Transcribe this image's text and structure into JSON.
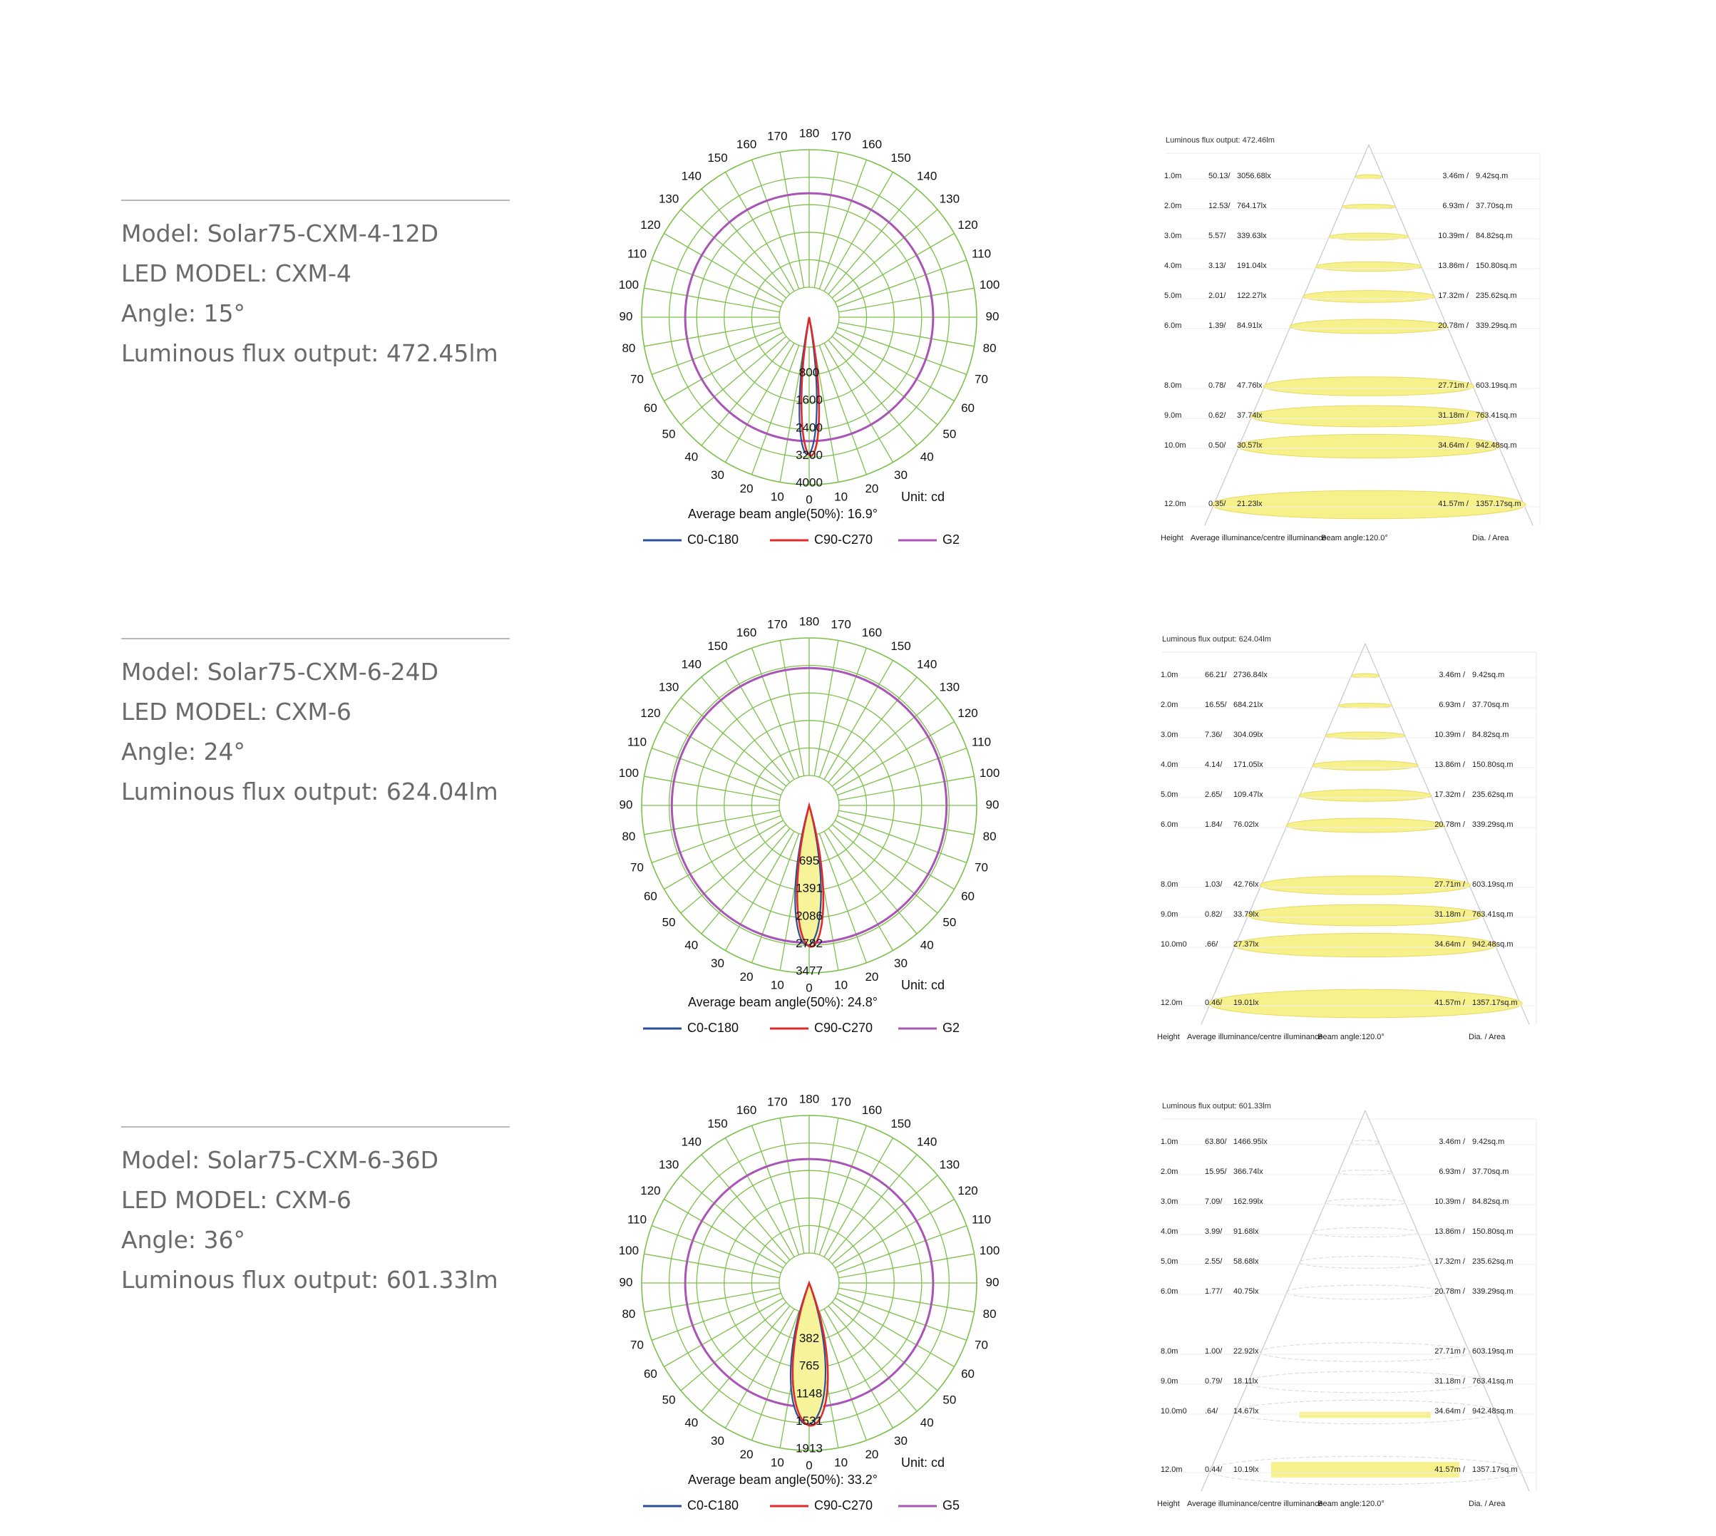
{
  "products": [
    {
      "model": "Model:  Solar75-CXM-4-12D",
      "led_model": "LED MODEL:  CXM-4",
      "angle": "Angle:  15°",
      "flux": "Luminous flux output: 472.45lm",
      "polar": {
        "radial_labels": [
          "800",
          "1600",
          "2400",
          "3200",
          "4000"
        ],
        "radial_max": 4000,
        "unit": "Unit:  cd",
        "beam_angle": "Average beam angle(50%):  16.9°",
        "legend": [
          "C0-C180",
          "C90-C270",
          "G2"
        ],
        "g_circle_fraction": 0.74,
        "lobe_half_width_deg": 8.5,
        "lobe_peak_fraction": 0.79,
        "lobe_fill": false
      },
      "cone": {
        "title": "Luminous flux output: 472.46lm",
        "beam": "Beam angle:120.0°",
        "fill_style": "solid",
        "rows": [
          {
            "h": "1.0m",
            "avg": "50.13/",
            "lx": "3056.68lx",
            "dia": "3.46m /",
            "area": "9.42sq.m"
          },
          {
            "h": "2.0m",
            "avg": "12.53/",
            "lx": "764.17lx",
            "dia": "6.93m /",
            "area": "37.70sq.m"
          },
          {
            "h": "3.0m",
            "avg": "5.57/",
            "lx": "339.63lx",
            "dia": "10.39m /",
            "area": "84.82sq.m"
          },
          {
            "h": "4.0m",
            "avg": "3.13/",
            "lx": "191.04lx",
            "dia": "13.86m /",
            "area": "150.80sq.m"
          },
          {
            "h": "5.0m",
            "avg": "2.01/",
            "lx": "122.27lx",
            "dia": "17.32m /",
            "area": "235.62sq.m"
          },
          {
            "h": "6.0m",
            "avg": "1.39/",
            "lx": "84.91lx",
            "dia": "20.78m /",
            "area": "339.29sq.m"
          },
          {
            "h": "8.0m",
            "avg": "0.78/",
            "lx": "47.76lx",
            "dia": "27.71m /",
            "area": "603.19sq.m"
          },
          {
            "h": "9.0m",
            "avg": "0.62/",
            "lx": "37.74lx",
            "dia": "31.18m /",
            "area": "763.41sq.m"
          },
          {
            "h": "10.0m",
            "avg": "0.50/",
            "lx": "30.57lx",
            "dia": "34.64m /",
            "area": "942.48sq.m"
          },
          {
            "h": "12.0m",
            "avg": "0.35/",
            "lx": "21.23lx",
            "dia": "41.57m /",
            "area": "1357.17sq.m"
          }
        ]
      }
    },
    {
      "model": "Model:  Solar75-CXM-6-24D",
      "led_model": "LED MODEL:  CXM-6",
      "angle": "Angle:  24°",
      "flux": "Luminous flux output: 624.04lm",
      "polar": {
        "radial_labels": [
          "695",
          "1391",
          "2086",
          "2782",
          "3477"
        ],
        "radial_max": 3477,
        "unit": "Unit: cd",
        "beam_angle": "Average beam angle(50%): 24.8°",
        "legend": [
          "C0-C180",
          "C90-C270",
          "G2"
        ],
        "g_circle_fraction": 0.82,
        "lobe_half_width_deg": 12.4,
        "lobe_peak_fraction": 0.81,
        "lobe_fill": true
      },
      "cone": {
        "title": "Luminous flux output: 624.04lm",
        "beam": "Beam angle:120.0°",
        "fill_style": "solid",
        "rows": [
          {
            "h": "1.0m",
            "avg": "66.21/",
            "lx": "2736.84lx",
            "dia": "3.46m /",
            "area": "9.42sq.m"
          },
          {
            "h": "2.0m",
            "avg": "16.55/",
            "lx": "684.21lx",
            "dia": "6.93m /",
            "area": "37.70sq.m"
          },
          {
            "h": "3.0m",
            "avg": "7.36/",
            "lx": "304.09lx",
            "dia": "10.39m /",
            "area": "84.82sq.m"
          },
          {
            "h": "4.0m",
            "avg": "4.14/",
            "lx": "171.05lx",
            "dia": "13.86m /",
            "area": "150.80sq.m"
          },
          {
            "h": "5.0m",
            "avg": "2.65/",
            "lx": "109.47lx",
            "dia": "17.32m /",
            "area": "235.62sq.m"
          },
          {
            "h": "6.0m",
            "avg": "1.84/",
            "lx": "76.02lx",
            "dia": "20.78m /",
            "area": "339.29sq.m"
          },
          {
            "h": "8.0m",
            "avg": "1.03/",
            "lx": "42.76lx",
            "dia": "27.71m /",
            "area": "603.19sq.m"
          },
          {
            "h": "9.0m",
            "avg": "0.82/",
            "lx": "33.79lx",
            "dia": "31.18m /",
            "area": "763.41sq.m"
          },
          {
            "h": "10.0m0",
            "avg": ".66/",
            "lx": "27.37lx",
            "dia": "34.64m /",
            "area": "942.48sq.m"
          },
          {
            "h": "12.0m",
            "avg": "0.46/",
            "lx": "19.01lx",
            "dia": "41.57m /",
            "area": "1357.17sq.m"
          }
        ]
      }
    },
    {
      "model": "Model:  Solar75-CXM-6-36D",
      "led_model": "LED MODEL:  CXM-6",
      "angle": "Angle:  36°",
      "flux": "Luminous flux output:  601.33lm",
      "polar": {
        "radial_labels": [
          "382",
          "765",
          "1148",
          "1531",
          "1913"
        ],
        "radial_max": 1913,
        "unit": "Unit: cd",
        "beam_angle": "Average beam angle(50%): 33.2°",
        "legend": [
          "C0-C180",
          "C90-C270",
          "G5"
        ],
        "g_circle_fraction": 0.74,
        "lobe_half_width_deg": 16.6,
        "lobe_peak_fraction": 0.82,
        "lobe_fill": true
      },
      "cone": {
        "title": "Luminous flux output: 601.33lm",
        "beam": "Beam angle:120.0°",
        "fill_style": "outline",
        "rows": [
          {
            "h": "1.0m",
            "avg": "63.80/",
            "lx": "1466.95lx",
            "dia": "3.46m /",
            "area": "9.42sq.m"
          },
          {
            "h": "2.0m",
            "avg": "15.95/",
            "lx": "366.74lx",
            "dia": "6.93m /",
            "area": "37.70sq.m"
          },
          {
            "h": "3.0m",
            "avg": "7.09/",
            "lx": "162.99lx",
            "dia": "10.39m /",
            "area": "84.82sq.m"
          },
          {
            "h": "4.0m",
            "avg": "3.99/",
            "lx": "91.68lx",
            "dia": "13.86m /",
            "area": "150.80sq.m"
          },
          {
            "h": "5.0m",
            "avg": "2.55/",
            "lx": "58.68lx",
            "dia": "17.32m /",
            "area": "235.62sq.m"
          },
          {
            "h": "6.0m",
            "avg": "1.77/",
            "lx": "40.75lx",
            "dia": "20.78m /",
            "area": "339.29sq.m"
          },
          {
            "h": "8.0m",
            "avg": "1.00/",
            "lx": "22.92lx",
            "dia": "27.71m /",
            "area": "603.19sq.m"
          },
          {
            "h": "9.0m",
            "avg": "0.79/",
            "lx": "18.11lx",
            "dia": "31.18m /",
            "area": "763.41sq.m"
          },
          {
            "h": "10.0m0",
            "avg": ".64/",
            "lx": "14.67lx",
            "dia": "34.64m /",
            "area": "942.48sq.m"
          },
          {
            "h": "12.0m",
            "avg": "0.44/",
            "lx": "10.19lx",
            "dia": "41.57m /",
            "area": "1357.17sq.m"
          }
        ]
      }
    }
  ],
  "cone_footer": {
    "height": "Height",
    "avg": "Average illuminance/centre illuminance",
    "dia": "Dia. / Area"
  },
  "colors": {
    "grid": "#7cc04a",
    "c0": "#2a4f9a",
    "c90": "#e02a2a",
    "g": "#a855b5",
    "lobe_fill": "#f6f39a",
    "cone_ellipse": "#f7f18c",
    "cone_ellipse_stroke": "#e9d96a",
    "cone_line": "#c8c8c8"
  },
  "chart_data": [
    {
      "type": "polar",
      "title": "",
      "series": [
        {
          "name": "C0-C180"
        },
        {
          "name": "C90-C270"
        },
        {
          "name": "G2"
        }
      ],
      "angle_ticks_deg": [
        0,
        10,
        20,
        30,
        40,
        50,
        60,
        70,
        80,
        90,
        100,
        110,
        120,
        130,
        140,
        150,
        160,
        170,
        180
      ],
      "radial_ticks": [
        800,
        1600,
        2400,
        3200,
        4000
      ],
      "unit": "cd",
      "beam_angle_deg": 16.9
    },
    {
      "type": "table",
      "title": "Luminous flux output: 472.46lm",
      "columns": [
        "Height",
        "Average illuminance/centre illuminance",
        "Dia. / Area"
      ],
      "beam_angle_deg": 120.0
    },
    {
      "type": "polar",
      "title": "",
      "series": [
        {
          "name": "C0-C180"
        },
        {
          "name": "C90-C270"
        },
        {
          "name": "G2"
        }
      ],
      "angle_ticks_deg": [
        0,
        10,
        20,
        30,
        40,
        50,
        60,
        70,
        80,
        90,
        100,
        110,
        120,
        130,
        140,
        150,
        160,
        170,
        180
      ],
      "radial_ticks": [
        695,
        1391,
        2086,
        2782,
        3477
      ],
      "unit": "cd",
      "beam_angle_deg": 24.8
    },
    {
      "type": "table",
      "title": "Luminous flux output: 624.04lm",
      "columns": [
        "Height",
        "Average illuminance/centre illuminance",
        "Dia. / Area"
      ],
      "beam_angle_deg": 120.0
    },
    {
      "type": "polar",
      "title": "",
      "series": [
        {
          "name": "C0-C180"
        },
        {
          "name": "C90-C270"
        },
        {
          "name": "G5"
        }
      ],
      "angle_ticks_deg": [
        0,
        10,
        20,
        30,
        40,
        50,
        60,
        70,
        80,
        90,
        100,
        110,
        120,
        130,
        140,
        150,
        160,
        170,
        180
      ],
      "radial_ticks": [
        382,
        765,
        1148,
        1531,
        1913
      ],
      "unit": "cd",
      "beam_angle_deg": 33.2
    },
    {
      "type": "table",
      "title": "Luminous flux output: 601.33lm",
      "columns": [
        "Height",
        "Average illuminance/centre illuminance",
        "Dia. / Area"
      ],
      "beam_angle_deg": 120.0
    }
  ]
}
